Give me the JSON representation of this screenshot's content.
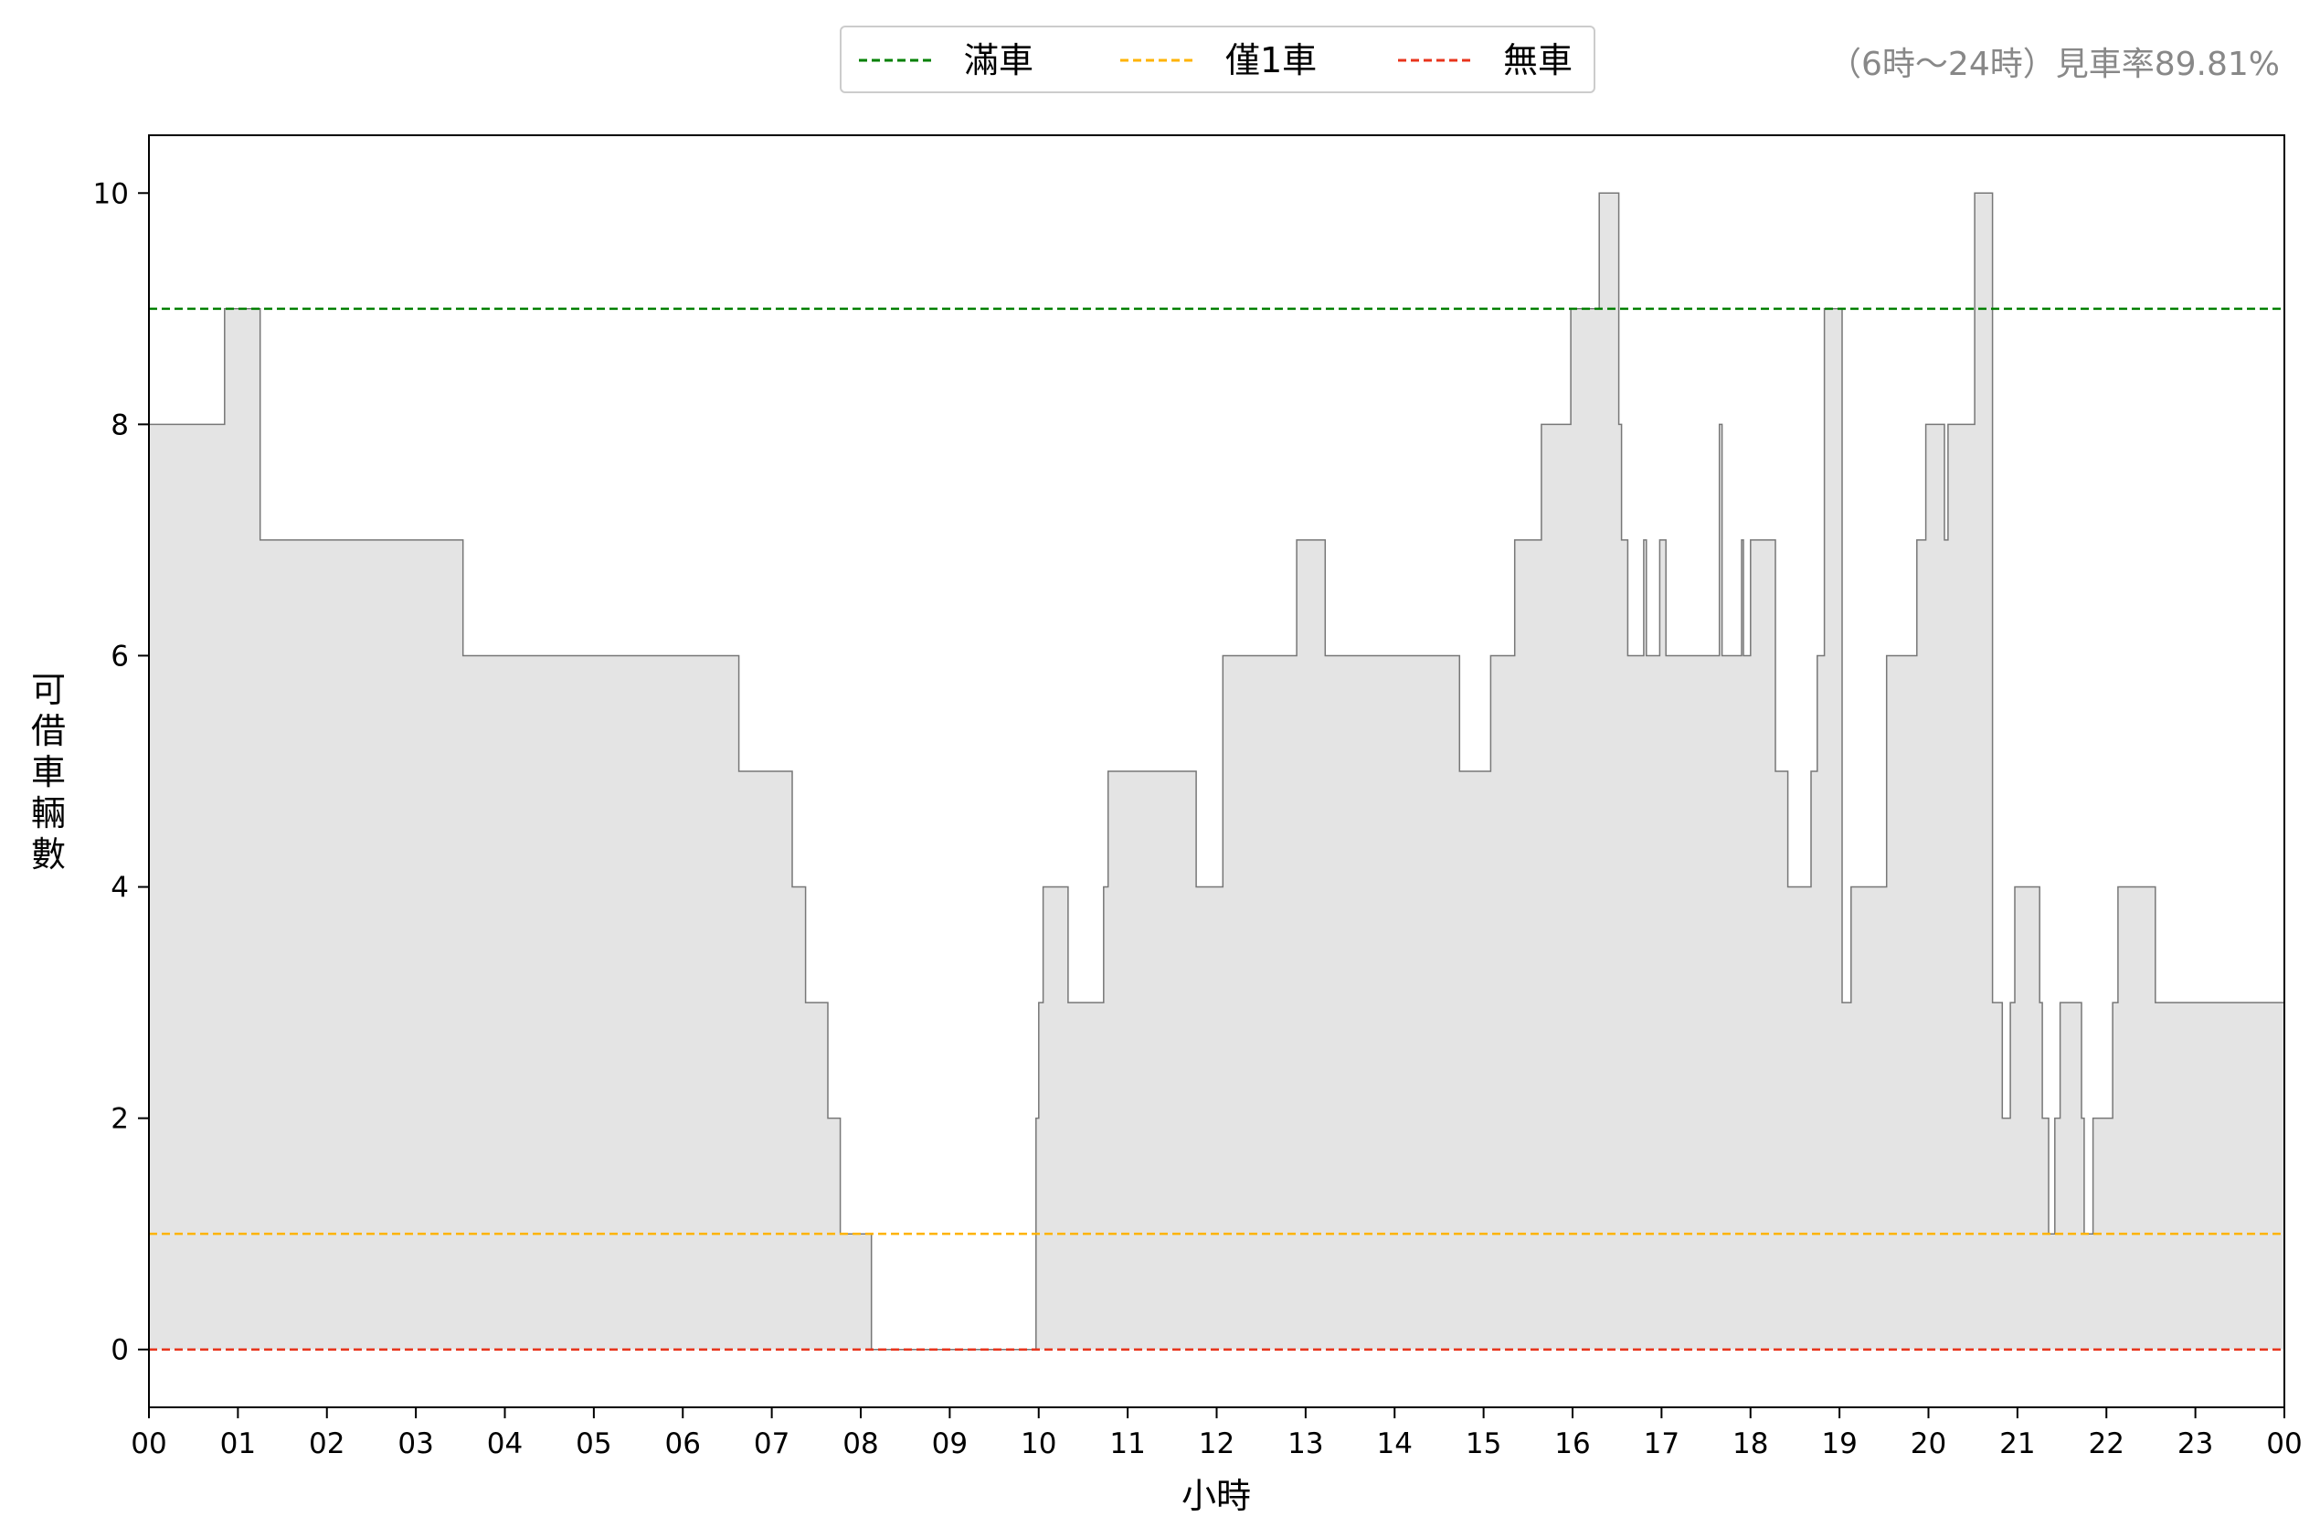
{
  "chart_data": {
    "type": "area",
    "xlabel": "小時",
    "ylabel": "可借車輛數",
    "annotation": "（6時～24時）見車率89.81%",
    "xlim": [
      0,
      24
    ],
    "ylim": [
      -0.5,
      10.5
    ],
    "x_tick_labels": [
      "00",
      "01",
      "02",
      "03",
      "04",
      "05",
      "06",
      "07",
      "08",
      "09",
      "10",
      "11",
      "12",
      "13",
      "14",
      "15",
      "16",
      "17",
      "18",
      "19",
      "20",
      "21",
      "22",
      "23",
      "00"
    ],
    "y_ticks": [
      0,
      2,
      4,
      6,
      8,
      10
    ],
    "grid": false,
    "legend_position": "top-center",
    "reference_lines": [
      {
        "name": "滿車",
        "y": 9,
        "color": "#008000",
        "style": "dashed"
      },
      {
        "name": "僅1車",
        "y": 1,
        "color": "#FFB300",
        "style": "dashed"
      },
      {
        "name": "無車",
        "y": 0,
        "color": "#E8341C",
        "style": "dashed"
      }
    ],
    "series": [
      {
        "color": "#777777",
        "fill": "#E4E4E4",
        "steps": [
          [
            0.0,
            8
          ],
          [
            0.85,
            9
          ],
          [
            1.25,
            7
          ],
          [
            3.53,
            6
          ],
          [
            6.63,
            5
          ],
          [
            7.23,
            4
          ],
          [
            7.38,
            3
          ],
          [
            7.63,
            2
          ],
          [
            7.77,
            1
          ],
          [
            8.12,
            0
          ],
          [
            9.97,
            2
          ],
          [
            10.0,
            3
          ],
          [
            10.05,
            4
          ],
          [
            10.33,
            3
          ],
          [
            10.73,
            4
          ],
          [
            10.78,
            5
          ],
          [
            11.77,
            4
          ],
          [
            12.07,
            6
          ],
          [
            12.9,
            7
          ],
          [
            13.22,
            6
          ],
          [
            14.73,
            5
          ],
          [
            15.08,
            6
          ],
          [
            15.35,
            7
          ],
          [
            15.65,
            8
          ],
          [
            15.98,
            9
          ],
          [
            16.3,
            10
          ],
          [
            16.52,
            8
          ],
          [
            16.55,
            7
          ],
          [
            16.62,
            6
          ],
          [
            16.8,
            7
          ],
          [
            16.83,
            6
          ],
          [
            16.98,
            7
          ],
          [
            17.05,
            6
          ],
          [
            17.65,
            8
          ],
          [
            17.68,
            6
          ],
          [
            17.9,
            7
          ],
          [
            17.92,
            6
          ],
          [
            18.0,
            7
          ],
          [
            18.28,
            5
          ],
          [
            18.42,
            4
          ],
          [
            18.68,
            5
          ],
          [
            18.75,
            6
          ],
          [
            18.83,
            9
          ],
          [
            19.03,
            3
          ],
          [
            19.13,
            4
          ],
          [
            19.53,
            6
          ],
          [
            19.87,
            7
          ],
          [
            19.97,
            8
          ],
          [
            20.18,
            7
          ],
          [
            20.22,
            8
          ],
          [
            20.52,
            10
          ],
          [
            20.72,
            3
          ],
          [
            20.83,
            2
          ],
          [
            20.92,
            3
          ],
          [
            20.97,
            4
          ],
          [
            21.25,
            3
          ],
          [
            21.28,
            2
          ],
          [
            21.35,
            1
          ],
          [
            21.42,
            2
          ],
          [
            21.48,
            3
          ],
          [
            21.72,
            2
          ],
          [
            21.75,
            1
          ],
          [
            21.85,
            2
          ],
          [
            22.07,
            3
          ],
          [
            22.13,
            4
          ],
          [
            22.55,
            3
          ],
          [
            24.0,
            3
          ]
        ]
      }
    ]
  }
}
